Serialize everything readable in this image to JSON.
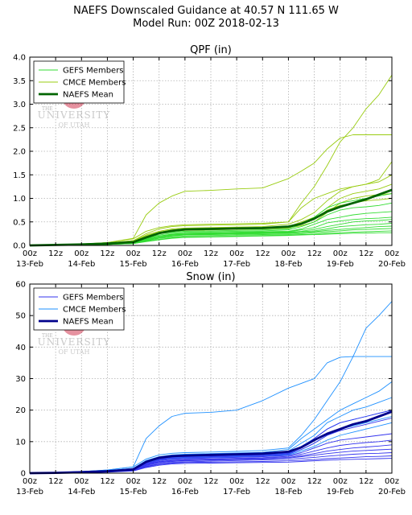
{
  "page": {
    "title_line1": "NAEFS Downscaled Guidance at 40.57 N 111.65 W",
    "title_line2": "Model Run: 00Z 2018-02-13"
  },
  "watermark": {
    "line1": "THE",
    "line2": "UNIVERSITY",
    "line3": "OF UTAH"
  },
  "x_ticks": [
    "00z",
    "12z",
    "00z",
    "12z",
    "00z",
    "12z",
    "00z",
    "12z",
    "00z",
    "12z",
    "00z",
    "12z",
    "00z",
    "12z",
    "00z"
  ],
  "x_dates": [
    "13-Feb",
    "14-Feb",
    "15-Feb",
    "16-Feb",
    "17-Feb",
    "18-Feb",
    "19-Feb",
    "20-Feb"
  ],
  "chart_data": [
    {
      "type": "line",
      "title": "QPF (in)",
      "x_unit": "hours since 00Z 2018-02-13",
      "xlim": [
        0,
        168
      ],
      "ylim": [
        0,
        4.0
      ],
      "yticks": [
        "0.0",
        "0.5",
        "1.0",
        "1.5",
        "2.0",
        "2.5",
        "3.0",
        "3.5",
        "4.0"
      ],
      "grid": true,
      "legend_position": "upper-left",
      "legend": [
        {
          "label": "GEFS Members",
          "color": "#33dd33",
          "width": 1
        },
        {
          "label": "CMCE Members",
          "color": "#99cc11",
          "width": 1
        },
        {
          "label": "NAEFS Mean",
          "color": "#006400",
          "width": 3
        }
      ],
      "x": [
        0,
        12,
        24,
        36,
        48,
        54,
        60,
        66,
        72,
        84,
        96,
        108,
        120,
        126,
        132,
        138,
        144,
        150,
        156,
        162,
        168
      ],
      "series": [
        {
          "name": "CMCE Members",
          "color": "#99cc11",
          "values": [
            0,
            0.01,
            0.03,
            0.06,
            0.15,
            0.65,
            0.9,
            1.05,
            1.15,
            1.17,
            1.2,
            1.22,
            1.42,
            1.58,
            1.75,
            2.05,
            2.28,
            2.35,
            2.35,
            2.35,
            2.35
          ]
        },
        {
          "name": "CMCE Members",
          "color": "#99cc11",
          "values": [
            0,
            0.01,
            0.03,
            0.06,
            0.14,
            0.3,
            0.38,
            0.42,
            0.44,
            0.45,
            0.46,
            0.47,
            0.5,
            0.9,
            1.25,
            1.7,
            2.2,
            2.5,
            2.9,
            3.2,
            3.62
          ]
        },
        {
          "name": "CMCE Members",
          "color": "#99cc11",
          "values": [
            0,
            0.01,
            0.03,
            0.05,
            0.1,
            0.25,
            0.35,
            0.4,
            0.42,
            0.43,
            0.44,
            0.45,
            0.5,
            0.8,
            1.0,
            1.1,
            1.2,
            1.25,
            1.3,
            1.4,
            1.78
          ]
        },
        {
          "name": "CMCE Members",
          "color": "#99cc11",
          "values": [
            0,
            0.01,
            0.02,
            0.05,
            0.1,
            0.22,
            0.3,
            0.35,
            0.37,
            0.38,
            0.39,
            0.4,
            0.45,
            0.55,
            0.7,
            0.95,
            1.15,
            1.25,
            1.3,
            1.35,
            1.5
          ]
        },
        {
          "name": "CMCE Members",
          "color": "#99cc11",
          "values": [
            0,
            0.01,
            0.02,
            0.05,
            0.09,
            0.2,
            0.28,
            0.32,
            0.34,
            0.35,
            0.36,
            0.37,
            0.4,
            0.5,
            0.6,
            0.8,
            1.0,
            1.1,
            1.15,
            1.2,
            1.3
          ]
        },
        {
          "name": "CMCE Members",
          "color": "#99cc11",
          "values": [
            0,
            0.01,
            0.02,
            0.04,
            0.08,
            0.18,
            0.25,
            0.3,
            0.32,
            0.33,
            0.34,
            0.35,
            0.37,
            0.42,
            0.5,
            0.7,
            0.9,
            1.0,
            1.05,
            1.08,
            1.1
          ]
        },
        {
          "name": "CMCE Members",
          "color": "#99cc11",
          "values": [
            0,
            0.01,
            0.02,
            0.04,
            0.08,
            0.2,
            0.28,
            0.33,
            0.35,
            0.36,
            0.37,
            0.38,
            0.4,
            0.45,
            0.55,
            0.75,
            0.85,
            0.9,
            0.95,
            0.97,
            1.0
          ]
        },
        {
          "name": "GEFS Members",
          "color": "#33dd33",
          "values": [
            0,
            0.01,
            0.02,
            0.04,
            0.07,
            0.18,
            0.25,
            0.28,
            0.3,
            0.31,
            0.32,
            0.33,
            0.35,
            0.45,
            0.6,
            0.8,
            0.9,
            0.95,
            1.0,
            1.05,
            1.1
          ]
        },
        {
          "name": "GEFS Members",
          "color": "#33dd33",
          "values": [
            0,
            0.01,
            0.02,
            0.04,
            0.07,
            0.16,
            0.22,
            0.26,
            0.28,
            0.29,
            0.3,
            0.31,
            0.33,
            0.4,
            0.5,
            0.65,
            0.75,
            0.8,
            0.82,
            0.85,
            0.9
          ]
        },
        {
          "name": "GEFS Members",
          "color": "#33dd33",
          "values": [
            0,
            0.01,
            0.02,
            0.03,
            0.06,
            0.15,
            0.2,
            0.24,
            0.26,
            0.27,
            0.28,
            0.29,
            0.3,
            0.35,
            0.45,
            0.55,
            0.6,
            0.65,
            0.68,
            0.7,
            0.72
          ]
        },
        {
          "name": "GEFS Members",
          "color": "#33dd33",
          "values": [
            0,
            0.01,
            0.02,
            0.03,
            0.06,
            0.14,
            0.2,
            0.23,
            0.25,
            0.26,
            0.27,
            0.28,
            0.29,
            0.33,
            0.38,
            0.48,
            0.52,
            0.55,
            0.57,
            0.58,
            0.6
          ]
        },
        {
          "name": "GEFS Members",
          "color": "#33dd33",
          "values": [
            0,
            0.01,
            0.02,
            0.03,
            0.05,
            0.13,
            0.18,
            0.22,
            0.24,
            0.25,
            0.26,
            0.27,
            0.28,
            0.3,
            0.34,
            0.4,
            0.45,
            0.5,
            0.52,
            0.53,
            0.55
          ]
        },
        {
          "name": "GEFS Members",
          "color": "#33dd33",
          "values": [
            0,
            0.01,
            0.02,
            0.03,
            0.05,
            0.12,
            0.18,
            0.21,
            0.23,
            0.24,
            0.25,
            0.26,
            0.27,
            0.29,
            0.31,
            0.35,
            0.4,
            0.42,
            0.44,
            0.45,
            0.47
          ]
        },
        {
          "name": "GEFS Members",
          "color": "#33dd33",
          "values": [
            0,
            0.01,
            0.02,
            0.03,
            0.05,
            0.11,
            0.16,
            0.2,
            0.22,
            0.23,
            0.24,
            0.25,
            0.26,
            0.27,
            0.29,
            0.32,
            0.34,
            0.36,
            0.38,
            0.4,
            0.41
          ]
        },
        {
          "name": "GEFS Members",
          "color": "#33dd33",
          "values": [
            0,
            0.01,
            0.01,
            0.02,
            0.04,
            0.1,
            0.15,
            0.18,
            0.2,
            0.21,
            0.22,
            0.23,
            0.24,
            0.25,
            0.27,
            0.29,
            0.31,
            0.33,
            0.34,
            0.35,
            0.36
          ]
        },
        {
          "name": "GEFS Members",
          "color": "#33dd33",
          "values": [
            0,
            0.01,
            0.01,
            0.02,
            0.04,
            0.09,
            0.13,
            0.16,
            0.18,
            0.19,
            0.2,
            0.21,
            0.22,
            0.23,
            0.24,
            0.26,
            0.27,
            0.28,
            0.29,
            0.3,
            0.31
          ]
        },
        {
          "name": "GEFS Members",
          "color": "#33dd33",
          "values": [
            0,
            0.01,
            0.01,
            0.02,
            0.04,
            0.08,
            0.12,
            0.15,
            0.17,
            0.18,
            0.19,
            0.2,
            0.21,
            0.22,
            0.23,
            0.24,
            0.25,
            0.26,
            0.26,
            0.27,
            0.27
          ]
        },
        {
          "name": "NAEFS Mean",
          "color": "#006400",
          "values": [
            0,
            0.01,
            0.02,
            0.04,
            0.07,
            0.17,
            0.26,
            0.31,
            0.34,
            0.35,
            0.36,
            0.37,
            0.4,
            0.46,
            0.57,
            0.72,
            0.82,
            0.9,
            0.98,
            1.08,
            1.18
          ]
        }
      ]
    },
    {
      "type": "line",
      "title": "Snow (in)",
      "x_unit": "hours since 00Z 2018-02-13",
      "xlim": [
        0,
        168
      ],
      "ylim": [
        0,
        60
      ],
      "yticks": [
        "0",
        "10",
        "20",
        "30",
        "40",
        "50",
        "60"
      ],
      "grid": true,
      "legend_position": "upper-left",
      "legend": [
        {
          "label": "GEFS Members",
          "color": "#3333ee",
          "width": 1
        },
        {
          "label": "CMCE Members",
          "color": "#1e90ff",
          "width": 1
        },
        {
          "label": "NAEFS Mean",
          "color": "#00008b",
          "width": 3
        }
      ],
      "x": [
        0,
        12,
        24,
        36,
        48,
        54,
        60,
        66,
        72,
        84,
        96,
        108,
        120,
        126,
        132,
        138,
        144,
        150,
        156,
        162,
        168
      ],
      "series": [
        {
          "name": "CMCE Members",
          "color": "#1e90ff",
          "values": [
            0,
            0.2,
            0.5,
            1,
            2,
            11,
            15,
            18,
            19,
            19.3,
            20,
            23,
            27,
            28.5,
            30,
            35,
            36.8,
            37,
            37,
            37,
            37
          ]
        },
        {
          "name": "CMCE Members",
          "color": "#1e90ff",
          "values": [
            0,
            0.2,
            0.5,
            1,
            2,
            4.5,
            5.8,
            6.3,
            6.5,
            6.7,
            6.9,
            7.2,
            8,
            12,
            17,
            23,
            29,
            37,
            46,
            50,
            54.5
          ]
        },
        {
          "name": "CMCE Members",
          "color": "#1e90ff",
          "values": [
            0,
            0.2,
            0.4,
            0.8,
            1.5,
            4,
            5.2,
            5.8,
            6,
            6.2,
            6.4,
            6.6,
            7.5,
            11,
            14,
            17,
            20,
            22,
            24,
            26,
            29
          ]
        },
        {
          "name": "CMCE Members",
          "color": "#1e90ff",
          "values": [
            0,
            0.2,
            0.4,
            0.8,
            1.5,
            3.8,
            5,
            5.5,
            5.7,
            5.9,
            6.1,
            6.3,
            7,
            9.5,
            12,
            16,
            18,
            20,
            21,
            22.5,
            24
          ]
        },
        {
          "name": "CMCE Members",
          "color": "#1e90ff",
          "values": [
            0,
            0.2,
            0.4,
            0.7,
            1.4,
            3.5,
            4.6,
            5.1,
            5.3,
            5.5,
            5.7,
            5.9,
            6.5,
            8.5,
            11,
            14,
            16,
            17,
            18,
            19,
            20
          ]
        },
        {
          "name": "CMCE Members",
          "color": "#1e90ff",
          "values": [
            0,
            0.1,
            0.4,
            0.7,
            1.3,
            3.3,
            4.4,
            4.9,
            5.1,
            5.3,
            5.5,
            5.7,
            6.2,
            7.5,
            9.5,
            12,
            14,
            15,
            16,
            17,
            18
          ]
        },
        {
          "name": "CMCE Members",
          "color": "#1e90ff",
          "values": [
            0,
            0.1,
            0.3,
            0.6,
            1.2,
            3,
            4,
            4.5,
            4.7,
            4.9,
            5.1,
            5.3,
            5.8,
            7,
            8.5,
            10.5,
            12,
            13,
            14,
            15,
            16
          ]
        },
        {
          "name": "GEFS Members",
          "color": "#3333ee",
          "values": [
            0,
            0.1,
            0.3,
            0.6,
            1.1,
            3.5,
            4.5,
            5,
            5.2,
            5.4,
            5.6,
            5.8,
            6.3,
            8,
            11,
            14,
            16,
            17,
            18,
            19,
            20
          ]
        },
        {
          "name": "GEFS Members",
          "color": "#3333ee",
          "values": [
            0,
            0.1,
            0.3,
            0.6,
            1.1,
            3.2,
            4.2,
            4.7,
            4.9,
            5.1,
            5.3,
            5.5,
            6,
            7.5,
            9.5,
            12,
            13.5,
            14.5,
            15.5,
            16.5,
            17.5
          ]
        },
        {
          "name": "GEFS Members",
          "color": "#3333ee",
          "values": [
            0,
            0.1,
            0.3,
            0.5,
            1,
            3,
            4,
            4.4,
            4.6,
            4.8,
            5,
            5.2,
            5.6,
            6.5,
            8,
            9.5,
            10.5,
            11,
            11.5,
            12,
            12.5
          ]
        },
        {
          "name": "GEFS Members",
          "color": "#3333ee",
          "values": [
            0,
            0.1,
            0.3,
            0.5,
            1,
            2.8,
            3.7,
            4.1,
            4.3,
            4.5,
            4.7,
            4.9,
            5.3,
            6,
            7,
            8,
            8.8,
            9.3,
            9.7,
            10,
            10.5
          ]
        },
        {
          "name": "GEFS Members",
          "color": "#3333ee",
          "values": [
            0,
            0.1,
            0.2,
            0.5,
            0.9,
            2.6,
            3.5,
            3.9,
            4.1,
            4.3,
            4.5,
            4.7,
            5,
            5.5,
            6.2,
            7,
            7.5,
            8,
            8.3,
            8.6,
            9
          ]
        },
        {
          "name": "GEFS Members",
          "color": "#3333ee",
          "values": [
            0,
            0.1,
            0.2,
            0.4,
            0.9,
            2.4,
            3.3,
            3.7,
            3.9,
            4.1,
            4.3,
            4.5,
            4.8,
            5.2,
            5.7,
            6.2,
            6.6,
            7,
            7.2,
            7.4,
            7.6
          ]
        },
        {
          "name": "GEFS Members",
          "color": "#3333ee",
          "values": [
            0,
            0.1,
            0.2,
            0.4,
            0.8,
            2.2,
            3,
            3.4,
            3.6,
            3.8,
            4,
            4.2,
            4.4,
            4.7,
            5,
            5.4,
            5.7,
            6,
            6.2,
            6.3,
            6.5
          ]
        },
        {
          "name": "GEFS Members",
          "color": "#3333ee",
          "values": [
            0,
            0.1,
            0.2,
            0.4,
            0.8,
            2,
            2.8,
            3.2,
            3.4,
            3.5,
            3.6,
            3.7,
            3.9,
            4.1,
            4.3,
            4.6,
            4.8,
            5,
            5.2,
            5.3,
            5.5
          ]
        },
        {
          "name": "GEFS Members",
          "color": "#3333ee",
          "values": [
            0,
            0.1,
            0.2,
            0.3,
            0.7,
            1.8,
            2.5,
            2.9,
            3.1,
            3.2,
            3.3,
            3.4,
            3.5,
            3.7,
            3.9,
            4.1,
            4.3,
            4.4,
            4.5,
            4.6,
            4.7
          ]
        },
        {
          "name": "NAEFS Mean",
          "color": "#00008b",
          "values": [
            0,
            0.1,
            0.3,
            0.6,
            1.2,
            3.6,
            4.9,
            5.4,
            5.6,
            5.8,
            6,
            6.2,
            6.8,
            8.2,
            10.5,
            12.5,
            14,
            15.5,
            16.5,
            18,
            19.5
          ]
        }
      ]
    }
  ]
}
